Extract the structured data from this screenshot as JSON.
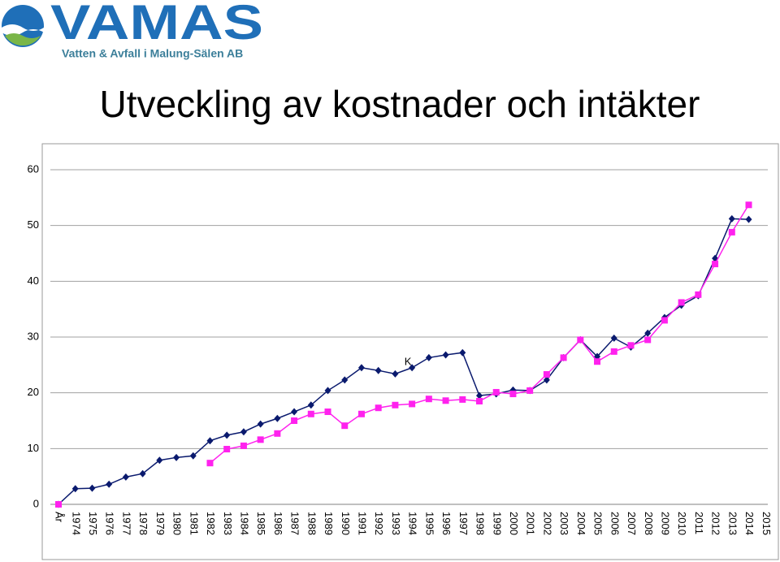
{
  "logo": {
    "name": "VAMAS",
    "tagline": "Vatten & Avfall i Malung-Sälen AB"
  },
  "chart_data": {
    "type": "line",
    "title": "Utveckling av kostnader och intäkter",
    "categories": [
      "År",
      "1974",
      "1975",
      "1976",
      "1977",
      "1978",
      "1979",
      "1980",
      "1981",
      "1982",
      "1983",
      "1984",
      "1985",
      "1986",
      "1987",
      "1988",
      "1989",
      "1990",
      "1991",
      "1992",
      "1993",
      "1994",
      "1995",
      "1996",
      "1997",
      "1998",
      "1999",
      "2000",
      "2001",
      "2002",
      "2003",
      "2004",
      "2005",
      "2006",
      "2007",
      "2008",
      "2009",
      "2010",
      "2011",
      "2012",
      "2013",
      "2014",
      "2015"
    ],
    "series": [
      {
        "color": "#0a1a6e",
        "marker": "diamond",
        "values": [
          0,
          2.8,
          2.9,
          3.6,
          4.9,
          5.5,
          7.9,
          8.4,
          8.7,
          11.4,
          12.4,
          13.0,
          14.4,
          15.4,
          16.6,
          17.8,
          20.4,
          22.3,
          24.5,
          24.0,
          23.4,
          24.5,
          26.3,
          26.8,
          27.2,
          19.5,
          19.8,
          20.5,
          20.4,
          22.3,
          26.3,
          29.5,
          26.5,
          29.8,
          28.2,
          30.7,
          33.5,
          35.7,
          37.4,
          44.1,
          51.2,
          51.1,
          null
        ]
      },
      {
        "color": "#ff22ee",
        "marker": "square",
        "values": [
          0,
          null,
          null,
          null,
          null,
          null,
          null,
          null,
          null,
          7.4,
          9.9,
          10.5,
          11.6,
          12.7,
          15.0,
          16.2,
          16.6,
          14.1,
          16.2,
          17.3,
          17.8,
          18.0,
          18.9,
          18.6,
          18.8,
          18.5,
          20.1,
          19.8,
          20.4,
          23.3,
          26.3,
          29.5,
          25.6,
          27.4,
          28.5,
          29.5,
          33.0,
          36.2,
          37.6,
          43.1,
          48.8,
          53.7,
          null
        ]
      }
    ],
    "annotations": [
      {
        "text": "K",
        "category": "1994",
        "value": 25.5
      }
    ],
    "ylim": [
      0,
      60
    ],
    "yticks": [
      0,
      10,
      20,
      30,
      40,
      50,
      60
    ],
    "grid": true
  }
}
